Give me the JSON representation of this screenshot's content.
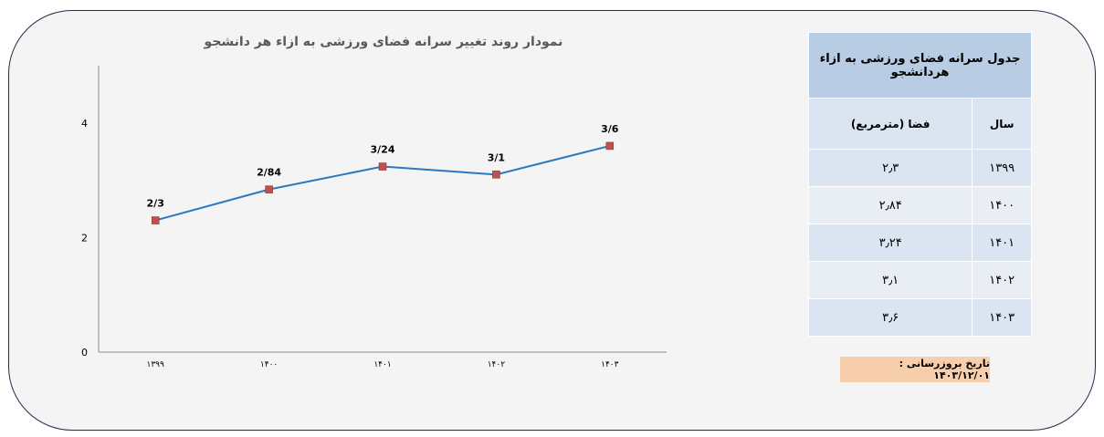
{
  "chart_data": {
    "type": "line",
    "title": "نمودار روند تغییر سرانه فضای ورزشی به ازاء هر دانشجو",
    "categories": [
      "۱۳۹۹",
      "۱۴۰۰",
      "۱۴۰۱",
      "۱۴۰۲",
      "۱۴۰۳"
    ],
    "values": [
      2.3,
      2.84,
      3.24,
      3.1,
      3.6
    ],
    "data_labels": [
      "2/3",
      "2/84",
      "3/24",
      "3/1",
      "3/6"
    ],
    "ylim": [
      0,
      5
    ],
    "yticks": [
      "0",
      "2",
      "4"
    ],
    "ytick_values": [
      0,
      2,
      4
    ],
    "grid": false,
    "legend": "none",
    "xlabel": "",
    "ylabel": "",
    "line_color": "#2b79bf",
    "marker_color": "#c0504d"
  },
  "table": {
    "title": "جدول سرانه فضای ورزشی به ازاء هردانشجو",
    "header_year": "سال",
    "header_space": "فضا (مترمربع)",
    "rows": [
      {
        "year": "۱۳۹۹",
        "space": "۲٫۳"
      },
      {
        "year": "۱۴۰۰",
        "space": "۲٫۸۴"
      },
      {
        "year": "۱۴۰۱",
        "space": "۳٫۲۴"
      },
      {
        "year": "۱۴۰۲",
        "space": "۳٫۱"
      },
      {
        "year": "۱۴۰۳",
        "space": "۳٫۶"
      }
    ]
  },
  "update_note": "تاریخ بروزرسانی : ۱۴۰۳/۱۲/۰۱"
}
